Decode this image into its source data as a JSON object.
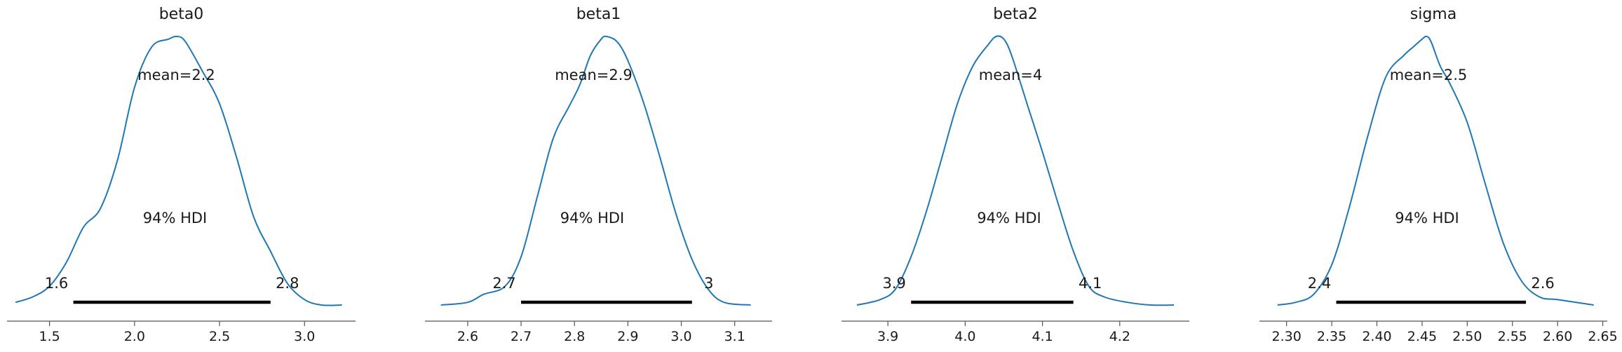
{
  "chart_data": [
    {
      "type": "area",
      "title": "beta0",
      "xlim": [
        1.25,
        3.3
      ],
      "ticks": [
        1.5,
        2.0,
        2.5,
        3.0
      ],
      "tick_labels": [
        "1.5",
        "2.0",
        "2.5",
        "3.0"
      ],
      "mean_label": "mean=2.2",
      "hdi_label": "94% HDI",
      "hdi": [
        1.64,
        2.8
      ],
      "hdi_low_label": "1.6",
      "hdi_high_label": "2.8",
      "density": {
        "x": [
          1.3,
          1.4,
          1.5,
          1.6,
          1.7,
          1.8,
          1.9,
          2.0,
          2.1,
          2.2,
          2.25,
          2.3,
          2.4,
          2.5,
          2.6,
          2.7,
          2.8,
          2.9,
          3.0,
          3.1,
          3.22
        ],
        "y": [
          0.01,
          0.03,
          0.07,
          0.16,
          0.29,
          0.36,
          0.54,
          0.81,
          0.96,
          0.99,
          1.0,
          0.98,
          0.87,
          0.75,
          0.55,
          0.33,
          0.2,
          0.08,
          0.02,
          0.0,
          0.0
        ]
      }
    },
    {
      "type": "area",
      "title": "beta1",
      "xlim": [
        2.52,
        3.17
      ],
      "ticks": [
        2.6,
        2.7,
        2.8,
        2.9,
        3.0,
        3.1
      ],
      "tick_labels": [
        "2.6",
        "2.7",
        "2.8",
        "2.9",
        "3.0",
        "3.1"
      ],
      "mean_label": "mean=2.9",
      "hdi_label": "94% HDI",
      "hdi": [
        2.7,
        3.02
      ],
      "hdi_low_label": "2.7",
      "hdi_high_label": "3",
      "density": {
        "x": [
          2.55,
          2.6,
          2.63,
          2.67,
          2.7,
          2.73,
          2.76,
          2.79,
          2.81,
          2.83,
          2.85,
          2.86,
          2.88,
          2.9,
          2.93,
          2.96,
          2.99,
          3.02,
          3.05,
          3.08,
          3.13
        ],
        "y": [
          0.0,
          0.01,
          0.04,
          0.07,
          0.18,
          0.4,
          0.62,
          0.74,
          0.82,
          0.93,
          0.99,
          1.0,
          0.98,
          0.91,
          0.75,
          0.55,
          0.34,
          0.17,
          0.06,
          0.01,
          0.0
        ]
      }
    },
    {
      "type": "area",
      "title": "beta2",
      "xlim": [
        3.84,
        4.29
      ],
      "ticks": [
        3.9,
        4.0,
        4.1,
        4.2
      ],
      "tick_labels": [
        "3.9",
        "4.0",
        "4.1",
        "4.2"
      ],
      "mean_label": "mean=4",
      "hdi_label": "94% HDI",
      "hdi": [
        3.93,
        4.14
      ],
      "hdi_low_label": "3.9",
      "hdi_high_label": "4.1",
      "density": {
        "x": [
          3.86,
          3.89,
          3.91,
          3.93,
          3.95,
          3.97,
          3.99,
          4.01,
          4.03,
          4.04,
          4.05,
          4.06,
          4.08,
          4.1,
          4.12,
          4.14,
          4.16,
          4.18,
          4.21,
          4.24,
          4.27
        ],
        "y": [
          0.0,
          0.02,
          0.06,
          0.18,
          0.35,
          0.55,
          0.75,
          0.89,
          0.97,
          1.0,
          0.99,
          0.93,
          0.75,
          0.57,
          0.38,
          0.2,
          0.07,
          0.03,
          0.01,
          0.0,
          0.0
        ]
      }
    },
    {
      "type": "area",
      "title": "sigma",
      "xlim": [
        2.27,
        2.655
      ],
      "ticks": [
        2.3,
        2.35,
        2.4,
        2.45,
        2.5,
        2.55,
        2.6,
        2.65
      ],
      "tick_labels": [
        "2.30",
        "2.35",
        "2.40",
        "2.45",
        "2.50",
        "2.55",
        "2.60",
        "2.65"
      ],
      "mean_label": "mean=2.5",
      "hdi_label": "94% HDI",
      "hdi": [
        2.355,
        2.565
      ],
      "hdi_low_label": "2.4",
      "hdi_high_label": "2.6",
      "density": {
        "x": [
          2.29,
          2.31,
          2.33,
          2.35,
          2.37,
          2.39,
          2.41,
          2.43,
          2.44,
          2.45,
          2.455,
          2.46,
          2.47,
          2.48,
          2.5,
          2.52,
          2.54,
          2.56,
          2.58,
          2.6,
          2.64
        ],
        "y": [
          0.0,
          0.01,
          0.04,
          0.15,
          0.37,
          0.63,
          0.85,
          0.93,
          0.96,
          0.99,
          1.0,
          0.98,
          0.89,
          0.83,
          0.68,
          0.45,
          0.23,
          0.09,
          0.03,
          0.02,
          0.0
        ]
      }
    }
  ]
}
